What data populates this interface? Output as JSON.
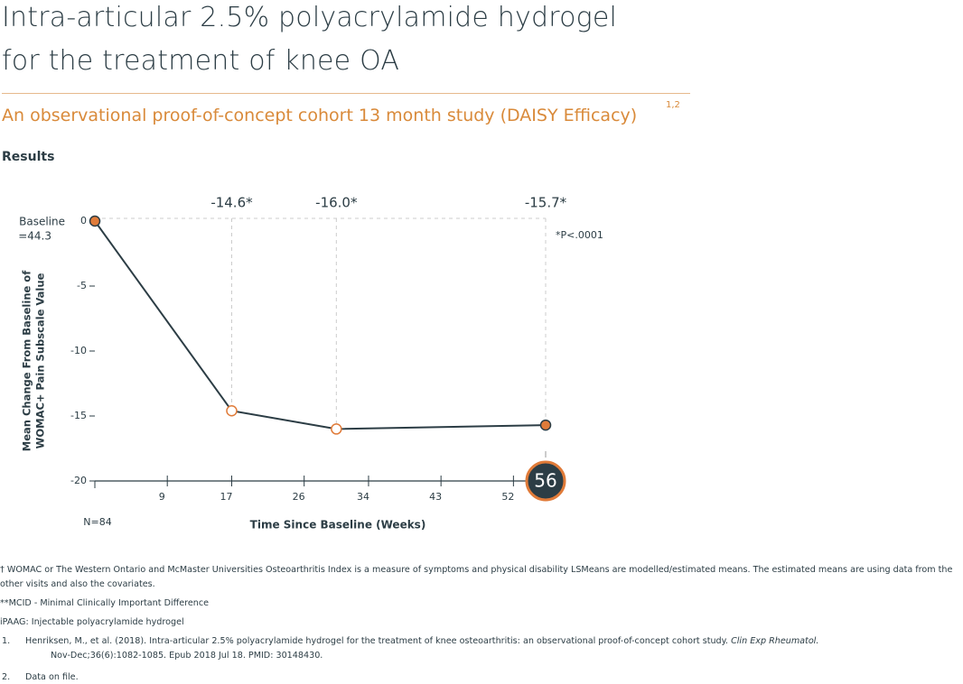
{
  "header": {
    "title_lines": [
      "Intra-articular 2.5% polyacrylamide hydrogel",
      "for the treatment of knee OA"
    ],
    "subtitle": "An observational proof-of-concept cohort 13 month study (DAISY Efficacy)",
    "subtitle_refs": "1,2",
    "section": "Results"
  },
  "chart_data": {
    "type": "line",
    "x": [
      0,
      17,
      30,
      56
    ],
    "values": [
      0,
      -14.6,
      -16.0,
      -15.7
    ],
    "value_labels": [
      null,
      "-14.6*",
      "-16.0*",
      "-15.7*"
    ],
    "color": "#2c3d45",
    "marker_fills": [
      "#e07b39",
      "#ffffff",
      "#ffffff",
      "#e07b39"
    ],
    "marker_stroke": "#e07b39",
    "xlim": [
      0,
      56
    ],
    "xticks": [
      9,
      17,
      26,
      34,
      43,
      52,
      56
    ],
    "ylim": [
      -20,
      0
    ],
    "yticks": [
      0,
      -5,
      -10,
      -15,
      -20
    ],
    "x_label": "Time Since Baseline (Weeks)",
    "y_label_lines": [
      "Mean Change From Baseline of",
      "WOMAC+ Pain Subscale Value"
    ],
    "annotations": {
      "baseline_lines": [
        "Baseline",
        "=44.3"
      ],
      "n": "N=84",
      "p_value": "*P<.0001"
    }
  },
  "footnotes": {
    "womac": "† WOMAC or The Western Ontario and McMaster Universities Osteoarthritis Index is a measure of symptoms and physical disability LSMeans are modelled/estimated means. The estimated means are using data from the other visits and also the covariates.",
    "mcid": "**MCID - Minimal Clinically Important Difference",
    "ipaag": "iPAAG: Injectable polyacrylamide hydrogel",
    "references": [
      {
        "number": "1.",
        "text": "Henriksen, M., et al. (2018). Intra-articular 2.5% polyacrylamide hydrogel for the treatment of knee osteoarthritis: an observational proof-of-concept cohort study.",
        "journal": "Clin Exp Rheumatol.",
        "details": "Nov-Dec;36(6):1082-1085. Epub 2018 Jul 18. PMID: 30148430."
      },
      {
        "number": "2.",
        "text": "Data on file."
      }
    ]
  }
}
